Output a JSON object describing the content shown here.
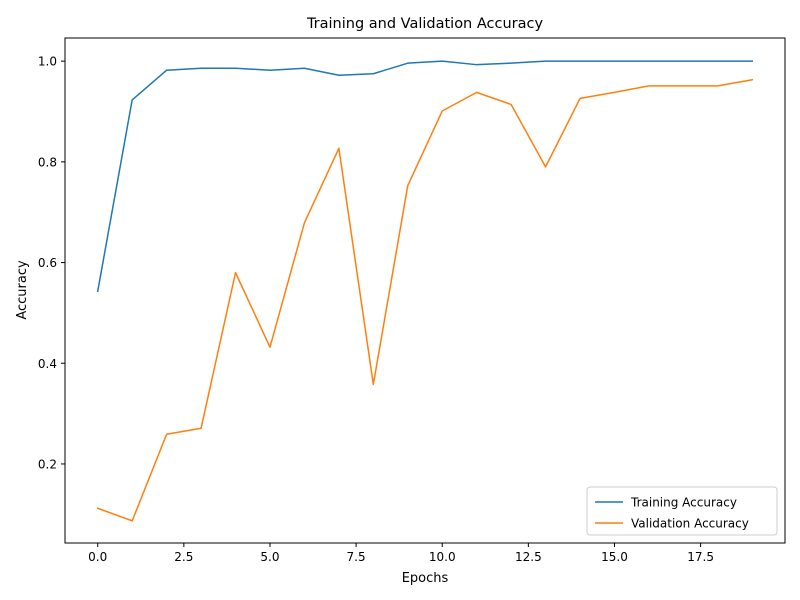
{
  "chart_data": {
    "type": "line",
    "title": "Training and Validation Accuracy",
    "xlabel": "Epochs",
    "ylabel": "Accuracy",
    "x": [
      0,
      1,
      2,
      3,
      4,
      5,
      6,
      7,
      8,
      9,
      10,
      11,
      12,
      13,
      14,
      15,
      16,
      17,
      18,
      19
    ],
    "xlim": [
      -0.95,
      19.95
    ],
    "ylim": [
      0.043,
      1.046
    ],
    "xticks": [
      0.0,
      2.5,
      5.0,
      7.5,
      10.0,
      12.5,
      15.0,
      17.5
    ],
    "xtick_labels": [
      "0.0",
      "2.5",
      "5.0",
      "7.5",
      "10.0",
      "12.5",
      "15.0",
      "17.5"
    ],
    "yticks": [
      0.2,
      0.4,
      0.6,
      0.8,
      1.0
    ],
    "ytick_labels": [
      "0.2",
      "0.4",
      "0.6",
      "0.8",
      "1.0"
    ],
    "grid": false,
    "legend_position": "lower-right",
    "series": [
      {
        "name": "Training Accuracy",
        "color": "#1f77b4",
        "values": [
          0.543,
          0.923,
          0.982,
          0.986,
          0.986,
          0.982,
          0.986,
          0.972,
          0.975,
          0.996,
          1.0,
          0.993,
          0.996,
          1.0,
          1.0,
          1.0,
          1.0,
          1.0,
          1.0,
          1.0
        ]
      },
      {
        "name": "Validation Accuracy",
        "color": "#ff7f0e",
        "values": [
          0.112,
          0.087,
          0.259,
          0.271,
          0.58,
          0.432,
          0.679,
          0.827,
          0.358,
          0.753,
          0.901,
          0.938,
          0.914,
          0.79,
          0.926,
          0.938,
          0.951,
          0.951,
          0.951,
          0.963
        ]
      }
    ]
  }
}
